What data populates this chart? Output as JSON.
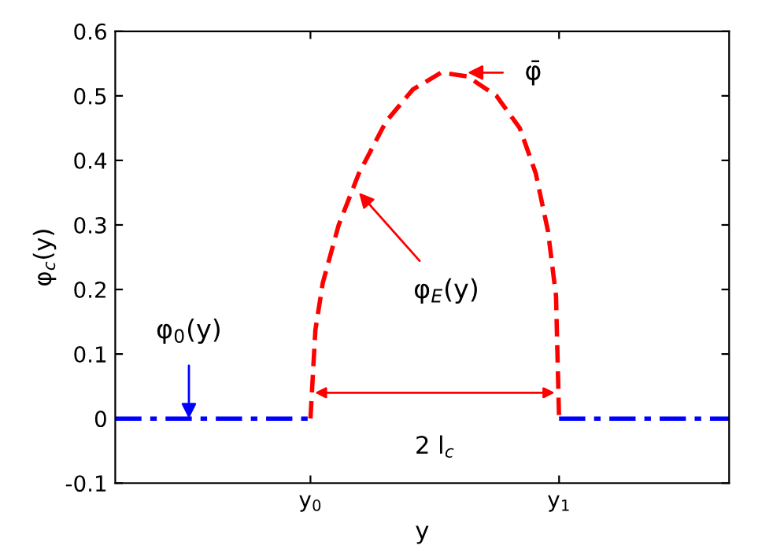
{
  "chart_data": {
    "type": "line",
    "xlabel": "y",
    "ylabel": "φ$_{c}$(y)",
    "xlim": [
      0,
      1
    ],
    "xticks": [
      {
        "value": 0.318,
        "label": "y$_{0}$"
      },
      {
        "value": 0.723,
        "label": "y$_{1}$"
      }
    ],
    "ylim": [
      -0.1,
      0.6
    ],
    "yticks": [
      -0.1,
      0,
      0.1,
      0.2,
      0.3,
      0.4,
      0.5,
      0.6
    ],
    "grid": false,
    "legend": false,
    "marker": "none",
    "series": [
      {
        "color": "#ff0000",
        "line_style": "dashed",
        "x": [
          0.318,
          0.326,
          0.338,
          0.364,
          0.397,
          0.441,
          0.485,
          0.531,
          0.574,
          0.621,
          0.659,
          0.685,
          0.705,
          0.718,
          0.723
        ],
        "values": [
          0,
          0.137,
          0.21,
          0.3,
          0.38,
          0.46,
          0.51,
          0.536,
          0.53,
          0.5,
          0.45,
          0.38,
          0.29,
          0.19,
          0
        ]
      },
      {
        "color": "#0000ff",
        "line_style": "dashdot",
        "x": [
          0,
          0.318,
          0.52,
          0.723,
          1
        ],
        "values": [
          0,
          0,
          null,
          0,
          0
        ]
      }
    ],
    "annotations": [
      {
        "text": "φ̄",
        "x": 0.574,
        "y": 0.536
      },
      {
        "text": "φ$_{E}$(y)",
        "x": 0.397,
        "y": 0.35
      },
      {
        "text": "φ$_{0}$(y)",
        "x": 0.12,
        "y": 0.0
      },
      "2 l$_{c}$"
    ]
  }
}
